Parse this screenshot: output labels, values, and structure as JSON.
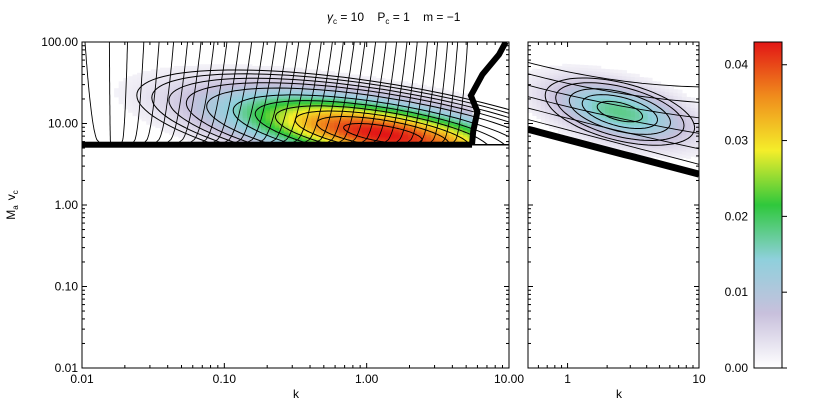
{
  "figure": {
    "title_parts": {
      "gamma": "γ",
      "gamma_sub": "c",
      "gamma_val": " = 10",
      "P": "P",
      "P_sub": "c",
      "P_val": " = 1",
      "m": "m = −1"
    }
  },
  "chart_data": [
    {
      "type": "heatmap",
      "panel": "left",
      "xscale": "log",
      "yscale": "log",
      "xlim": [
        0.01,
        10.0
      ],
      "ylim": [
        0.01,
        100.0
      ],
      "xlabel": "k",
      "ylabel_parts": {
        "M": "M",
        "M_sub": "a",
        "v": "v",
        "v_sub": "c"
      },
      "xticks": [
        0.01,
        0.1,
        1.0,
        10.0
      ],
      "xtick_labels": [
        "0.01",
        "0.10",
        "1.00",
        "10.00"
      ],
      "yticks": [
        0.01,
        0.1,
        1.0,
        10.0,
        100.0
      ],
      "ytick_labels": [
        "0.01",
        "0.10",
        "1.00",
        "10.00",
        "100.00"
      ],
      "contour_levels": 32,
      "peak": {
        "k": 1.3,
        "y": 7.5,
        "value": 0.043
      },
      "boundary_lower_y": 5.5,
      "boundary_upper_k": 5.5
    },
    {
      "type": "heatmap",
      "panel": "right",
      "xscale": "log",
      "yscale": "log",
      "xlim": [
        0.5,
        10
      ],
      "ylim": [
        0.01,
        100.0
      ],
      "xlabel": "k",
      "xticks": [
        1,
        10
      ],
      "xtick_labels": [
        "1",
        "10"
      ],
      "peak": {
        "k": 2.5,
        "y": 14,
        "value": 0.018
      }
    },
    {
      "type": "colorbar",
      "range": [
        0.0,
        0.043
      ],
      "ticks": [
        0.0,
        0.01,
        0.02,
        0.03,
        0.04
      ],
      "tick_labels": [
        "0.00",
        "0.01",
        "0.02",
        "0.03",
        "0.04"
      ],
      "colormap": [
        "#ffffff",
        "#c8c0dc",
        "#8fd0dc",
        "#2fc83c",
        "#f4ee2a",
        "#f08c1c",
        "#e21616"
      ]
    }
  ]
}
